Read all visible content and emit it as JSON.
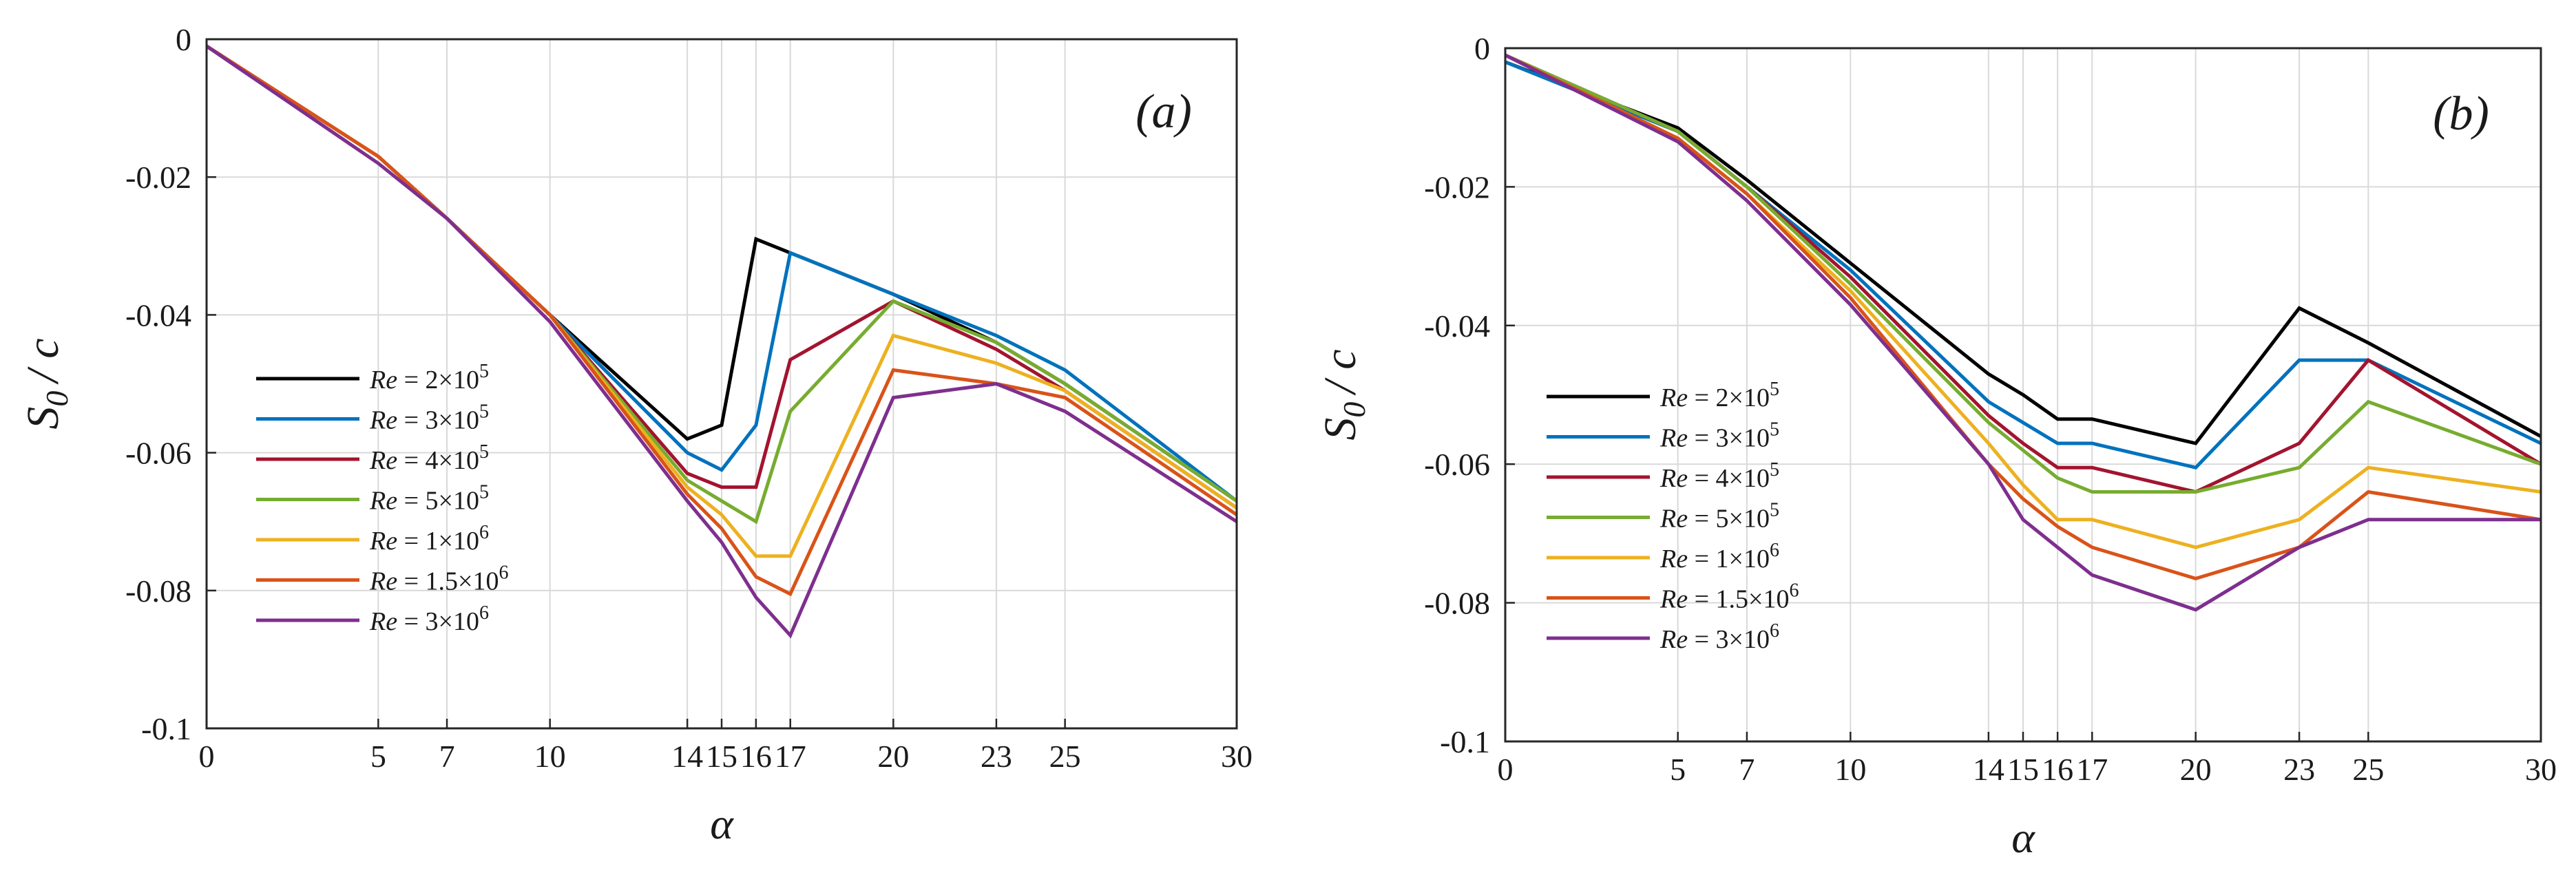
{
  "chart_data": [
    {
      "type": "line",
      "panel_label": "(a)",
      "x": [
        0,
        5,
        7,
        10,
        14,
        15,
        16,
        17,
        20,
        23,
        25,
        30
      ],
      "xlabel": "α",
      "ylabel_main": "S",
      "ylabel_sub": "0",
      "ylabel_rest": "/ c",
      "xticks": [
        0,
        5,
        7,
        10,
        14,
        15,
        16,
        17,
        20,
        23,
        25,
        30
      ],
      "xtick_labels": [
        "0",
        "5",
        "7",
        "10",
        "14",
        "15",
        "16",
        "17",
        "20",
        "23",
        "25",
        "30"
      ],
      "yticks": [
        0,
        -0.02,
        -0.04,
        -0.06,
        -0.08,
        -0.1
      ],
      "ytick_labels": [
        "0",
        "-0.02",
        "-0.04",
        "-0.06",
        "-0.08",
        "-0.1"
      ],
      "xlim": [
        0,
        30
      ],
      "ylim": [
        -0.1,
        0
      ],
      "grid": true,
      "legend_position": "center-left",
      "series": [
        {
          "name": "Re = 2×10^5",
          "label_prefix": "Re",
          "label_eq": " = 2×10",
          "label_exp": "5",
          "color": "#000000",
          "values": [
            -0.001,
            -0.017,
            -0.026,
            -0.04,
            -0.058,
            -0.056,
            -0.029,
            -0.031,
            -0.037,
            -0.044,
            -0.05,
            -0.067
          ]
        },
        {
          "name": "Re = 3×10^5",
          "label_prefix": "Re",
          "label_eq": " = 3×10",
          "label_exp": "5",
          "color": "#0072BD",
          "values": [
            -0.001,
            -0.017,
            -0.026,
            -0.04,
            -0.06,
            -0.0625,
            -0.056,
            -0.031,
            -0.037,
            -0.043,
            -0.048,
            -0.067
          ]
        },
        {
          "name": "Re = 4×10^5",
          "label_prefix": "Re",
          "label_eq": " = 4×10",
          "label_exp": "5",
          "color": "#A2142F",
          "values": [
            -0.001,
            -0.017,
            -0.026,
            -0.04,
            -0.063,
            -0.065,
            -0.065,
            -0.0465,
            -0.038,
            -0.045,
            -0.051,
            -0.068
          ]
        },
        {
          "name": "Re = 5×10^5",
          "label_prefix": "Re",
          "label_eq": " = 5×10",
          "label_exp": "5",
          "color": "#77AC30",
          "values": [
            -0.001,
            -0.017,
            -0.026,
            -0.04,
            -0.064,
            -0.067,
            -0.07,
            -0.054,
            -0.038,
            -0.044,
            -0.05,
            -0.067
          ]
        },
        {
          "name": "Re = 1×10^6",
          "label_prefix": "Re",
          "label_eq": " = 1×10",
          "label_exp": "6",
          "color": "#EDB120",
          "values": [
            -0.001,
            -0.017,
            -0.026,
            -0.04,
            -0.065,
            -0.069,
            -0.075,
            -0.075,
            -0.043,
            -0.047,
            -0.051,
            -0.068
          ]
        },
        {
          "name": "Re = 1.5×10^6",
          "label_prefix": "Re",
          "label_eq": " = 1.5×10",
          "label_exp": "6",
          "color": "#D95319",
          "values": [
            -0.001,
            -0.017,
            -0.026,
            -0.04,
            -0.066,
            -0.071,
            -0.078,
            -0.0805,
            -0.048,
            -0.05,
            -0.052,
            -0.069
          ]
        },
        {
          "name": "Re = 3×10^6",
          "label_prefix": "Re",
          "label_eq": " = 3×10",
          "label_exp": "6",
          "color": "#7E2F8E",
          "values": [
            -0.001,
            -0.018,
            -0.026,
            -0.041,
            -0.067,
            -0.073,
            -0.081,
            -0.0865,
            -0.052,
            -0.05,
            -0.054,
            -0.07
          ]
        }
      ]
    },
    {
      "type": "line",
      "panel_label": "(b)",
      "x": [
        0,
        5,
        7,
        10,
        14,
        15,
        16,
        17,
        20,
        23,
        25,
        30
      ],
      "xlabel": "α",
      "ylabel_main": "S",
      "ylabel_sub": "0",
      "ylabel_rest": "/ c",
      "xticks": [
        0,
        5,
        7,
        10,
        14,
        15,
        16,
        17,
        20,
        23,
        25,
        30
      ],
      "xtick_labels": [
        "0",
        "5",
        "7",
        "10",
        "14",
        "15",
        "16",
        "17",
        "20",
        "23",
        "25",
        "30"
      ],
      "yticks": [
        0,
        -0.02,
        -0.04,
        -0.06,
        -0.08,
        -0.1
      ],
      "ytick_labels": [
        "0",
        "-0.02",
        "-0.04",
        "-0.06",
        "-0.08",
        "-0.1"
      ],
      "xlim": [
        0,
        30
      ],
      "ylim": [
        -0.1,
        0
      ],
      "grid": true,
      "legend_position": "center-left",
      "series": [
        {
          "name": "Re = 2×10^5",
          "label_prefix": "Re",
          "label_eq": " = 2×10",
          "label_exp": "5",
          "color": "#000000",
          "values": [
            -0.002,
            -0.0115,
            -0.019,
            -0.031,
            -0.047,
            -0.05,
            -0.0535,
            -0.0535,
            -0.057,
            -0.0375,
            -0.0425,
            -0.056
          ]
        },
        {
          "name": "Re = 3×10^5",
          "label_prefix": "Re",
          "label_eq": " = 3×10",
          "label_exp": "5",
          "color": "#0072BD",
          "values": [
            -0.002,
            -0.012,
            -0.02,
            -0.032,
            -0.051,
            -0.054,
            -0.057,
            -0.057,
            -0.0605,
            -0.045,
            -0.045,
            -0.057
          ]
        },
        {
          "name": "Re = 4×10^5",
          "label_prefix": "Re",
          "label_eq": " = 4×10",
          "label_exp": "5",
          "color": "#A2142F",
          "values": [
            -0.001,
            -0.012,
            -0.02,
            -0.033,
            -0.053,
            -0.057,
            -0.0605,
            -0.0605,
            -0.064,
            -0.057,
            -0.045,
            -0.06
          ]
        },
        {
          "name": "Re = 5×10^5",
          "label_prefix": "Re",
          "label_eq": " = 5×10",
          "label_exp": "5",
          "color": "#77AC30",
          "values": [
            -0.001,
            -0.012,
            -0.02,
            -0.034,
            -0.054,
            -0.058,
            -0.062,
            -0.064,
            -0.064,
            -0.0605,
            -0.051,
            -0.06
          ]
        },
        {
          "name": "Re = 1×10^6",
          "label_prefix": "Re",
          "label_eq": " = 1×10",
          "label_exp": "6",
          "color": "#EDB120",
          "values": [
            -0.001,
            -0.013,
            -0.021,
            -0.035,
            -0.057,
            -0.063,
            -0.068,
            -0.068,
            -0.072,
            -0.068,
            -0.0605,
            -0.064
          ]
        },
        {
          "name": "Re = 1.5×10^6",
          "label_prefix": "Re",
          "label_eq": " = 1.5×10",
          "label_exp": "6",
          "color": "#D95319",
          "values": [
            -0.001,
            -0.013,
            -0.021,
            -0.036,
            -0.06,
            -0.065,
            -0.069,
            -0.072,
            -0.0765,
            -0.072,
            -0.064,
            -0.068
          ]
        },
        {
          "name": "Re = 3×10^6",
          "label_prefix": "Re",
          "label_eq": " = 3×10",
          "label_exp": "6",
          "color": "#7E2F8E",
          "values": [
            -0.001,
            -0.0135,
            -0.022,
            -0.037,
            -0.06,
            -0.068,
            -0.072,
            -0.076,
            -0.081,
            -0.072,
            -0.068,
            -0.068
          ]
        }
      ]
    }
  ]
}
